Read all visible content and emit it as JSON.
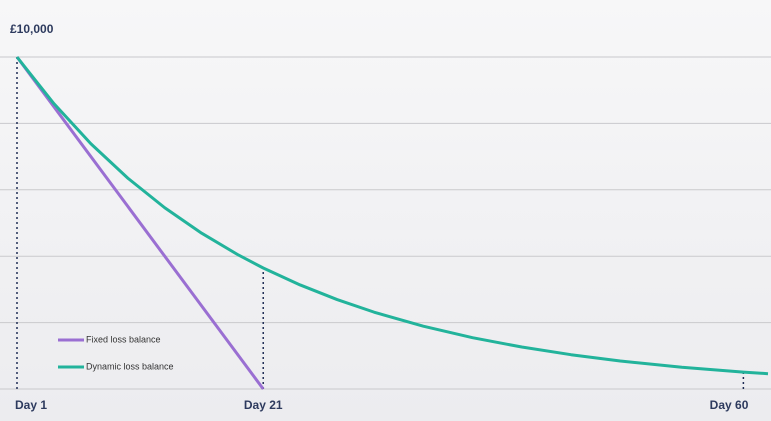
{
  "chart_data": {
    "type": "line",
    "x": [
      1,
      4,
      7,
      10,
      13,
      16,
      19,
      21,
      24,
      27,
      30,
      34,
      38,
      42,
      46,
      50,
      55,
      60,
      62
    ],
    "series": [
      {
        "name": "Fixed loss balance",
        "color": "#9a6fd2",
        "x": [
          1,
          21
        ],
        "values": [
          10000,
          0
        ]
      },
      {
        "name": "Dynamic loss balance",
        "color": "#22b39b",
        "values": [
          10000,
          8595,
          7388,
          6351,
          5459,
          4692,
          4033,
          3645,
          3134,
          2694,
          2315,
          1892,
          1546,
          1264,
          1033,
          844,
          656,
          510,
          461
        ]
      }
    ],
    "xlim": [
      1,
      62
    ],
    "xticks": [
      {
        "value": 1,
        "label": "Day 1"
      },
      {
        "value": 21,
        "label": "Day 21"
      },
      {
        "value": 60,
        "label": "Day 60"
      }
    ],
    "ylim": [
      0,
      10000
    ],
    "yticks": [
      {
        "value": 10000,
        "label": "£10,000"
      }
    ],
    "ygrid": [
      0,
      2000,
      4000,
      6000,
      8000,
      10000
    ],
    "grid": true,
    "legend": "bottom-left"
  }
}
